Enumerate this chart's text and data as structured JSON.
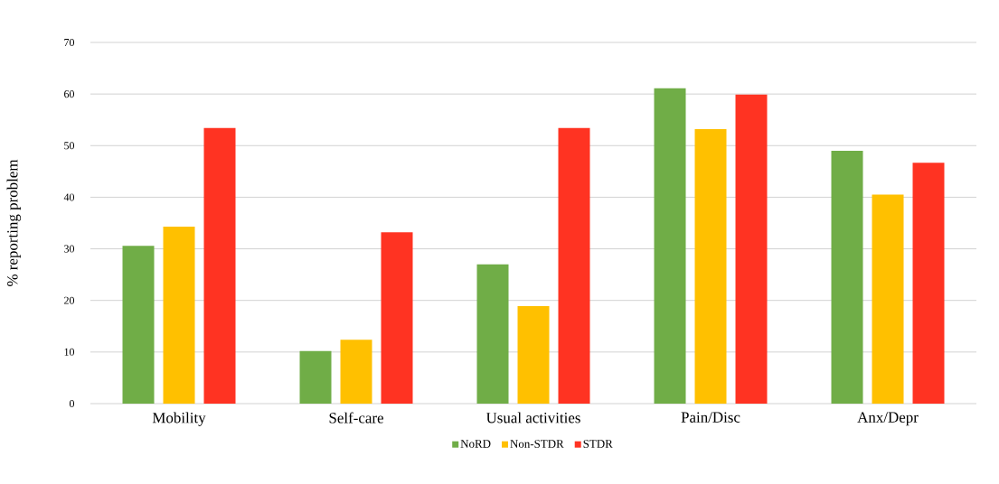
{
  "chart_data": {
    "type": "bar",
    "ylabel": "% reporting problem",
    "categories": [
      "Mobility",
      "Self-care",
      "Usual activities",
      "Pain/Disc",
      "Anx/Depr"
    ],
    "series": [
      {
        "name": "NoRD",
        "color": "#70ad47",
        "values": [
          30.6,
          10.2,
          27.0,
          61.1,
          49.0
        ]
      },
      {
        "name": "Non-STDR",
        "color": "#ffc000",
        "values": [
          34.3,
          12.4,
          18.9,
          53.2,
          40.5
        ]
      },
      {
        "name": "STDR",
        "color": "#ff3322",
        "values": [
          53.4,
          33.2,
          53.4,
          59.9,
          46.7
        ]
      }
    ],
    "ylim": [
      0,
      70
    ],
    "yticks": [
      0,
      10,
      20,
      30,
      40,
      50,
      60,
      70
    ],
    "grid": "y",
    "legend": "bottom"
  }
}
